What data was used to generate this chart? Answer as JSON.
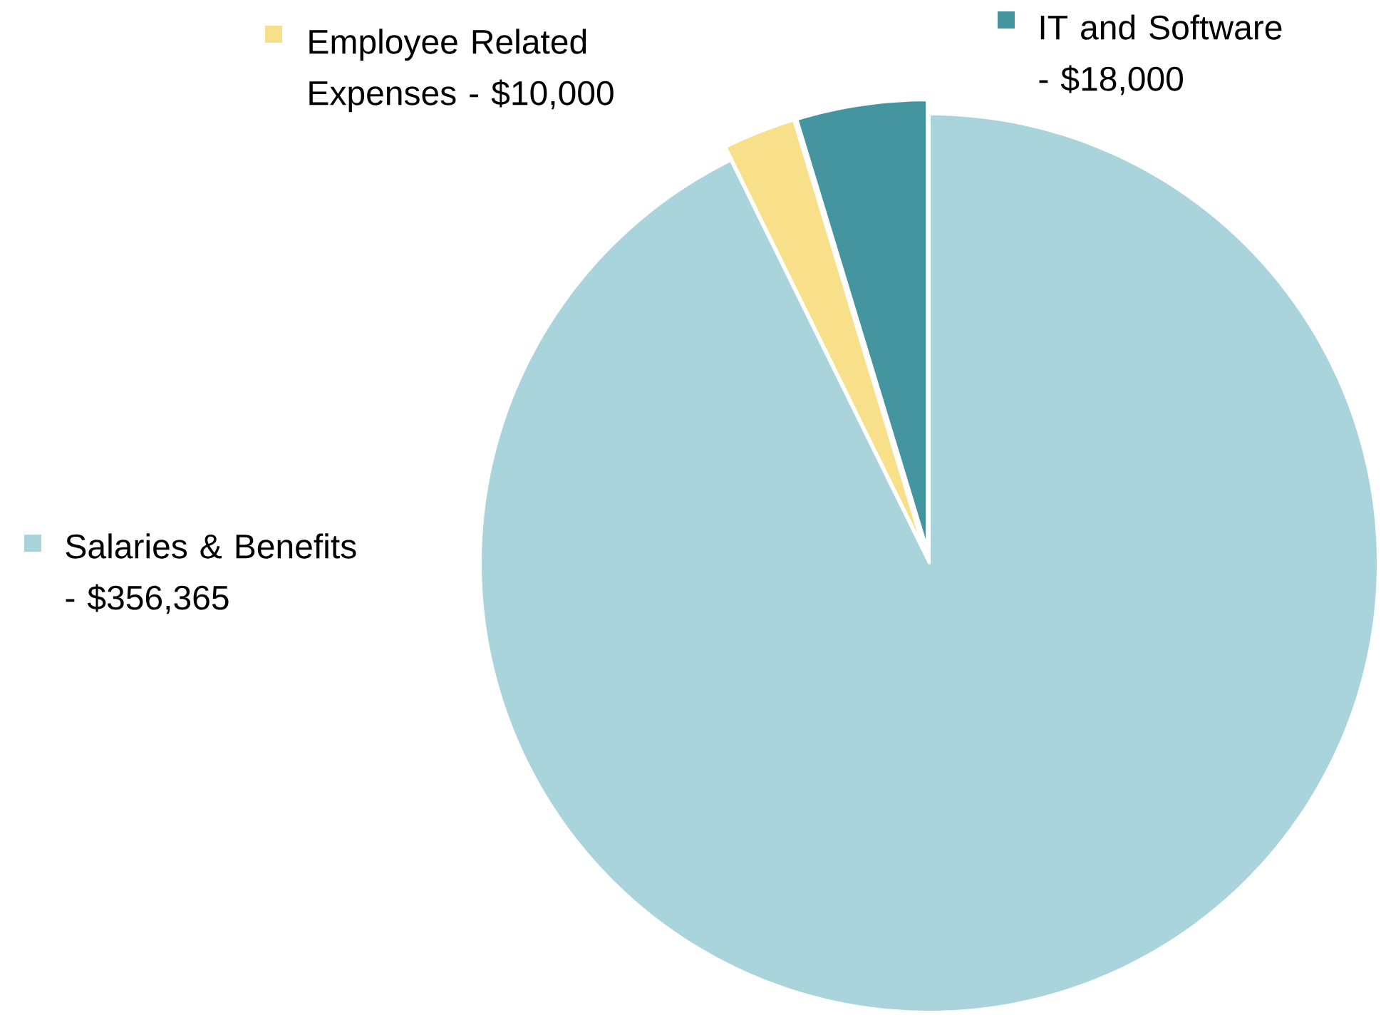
{
  "chart_data": {
    "type": "pie",
    "categories": [
      "Salaries & Benefits -",
      "Employee Related Expenses -",
      "IT and Software -"
    ],
    "values": [
      356365,
      10000,
      18000
    ],
    "value_labels": [
      "$356,365",
      "$10,000",
      "$18,000"
    ],
    "colors": [
      "#a9d4db",
      "#f8e08a",
      "#4595a0"
    ],
    "legend": "top"
  }
}
